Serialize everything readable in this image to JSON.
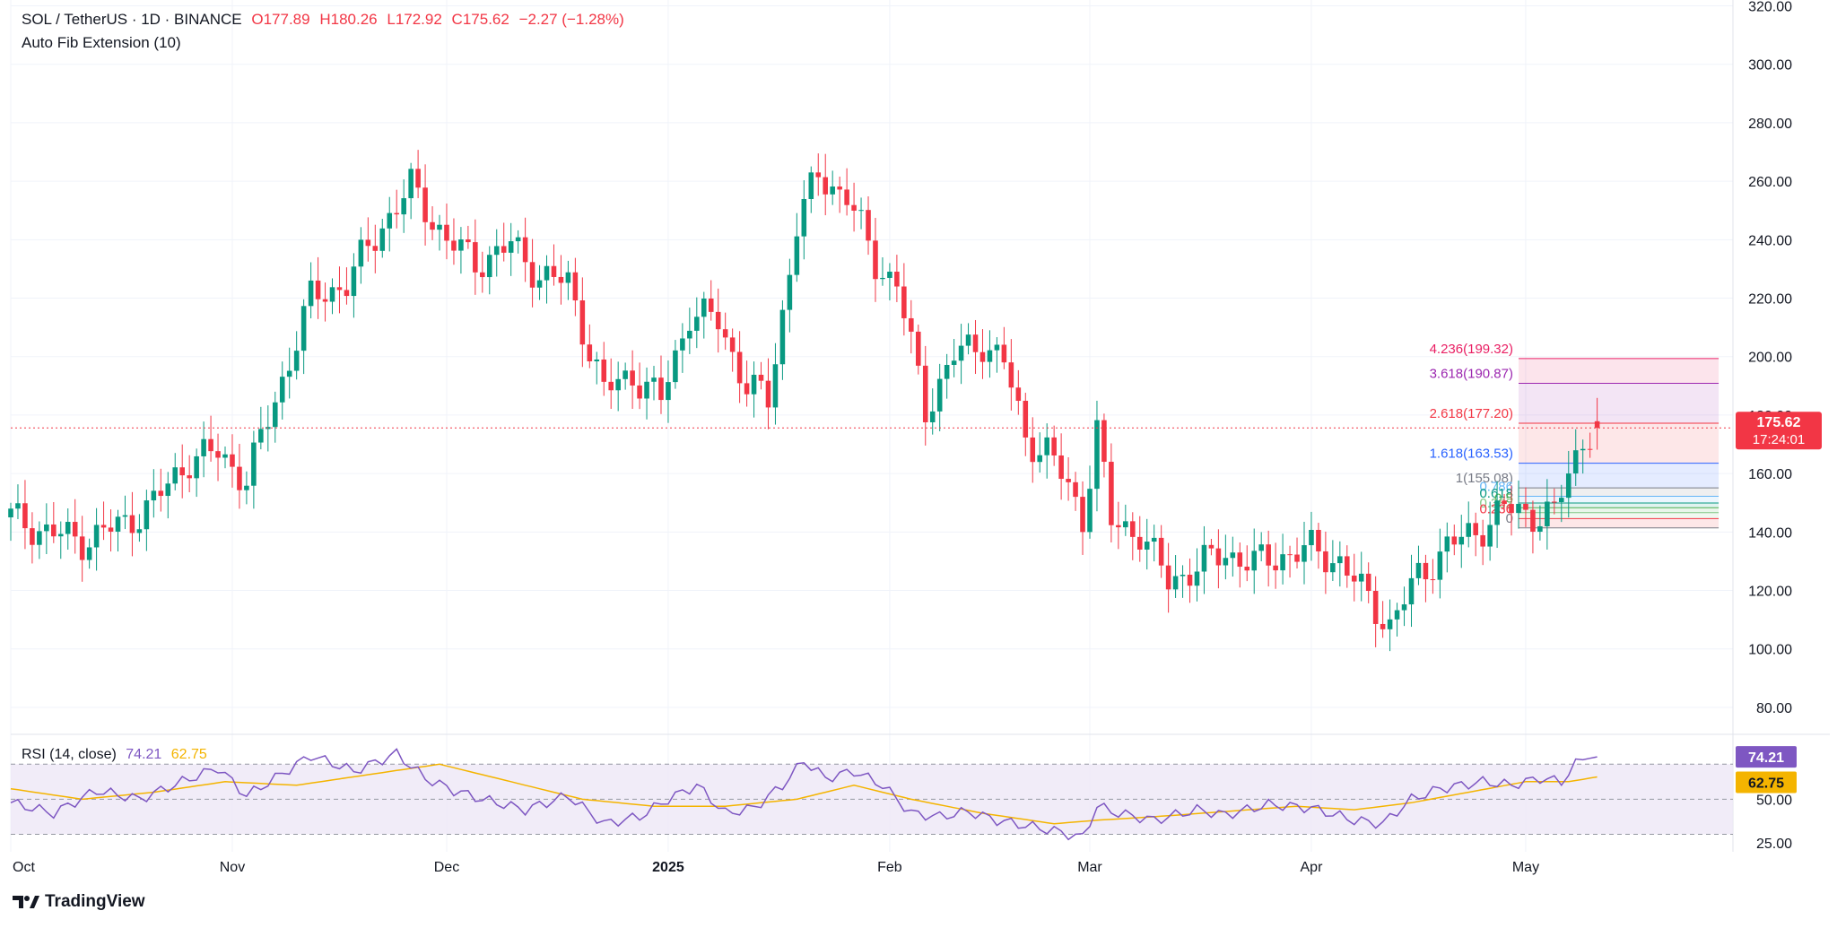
{
  "header": {
    "symbol": "SOL / TetherUS · 1D · BINANCE",
    "open": "O177.89",
    "high": "H180.26",
    "low": "L172.92",
    "close": "C175.62",
    "change": "−2.27 (−1.28%)",
    "indicator": "Auto Fib Extension (10)"
  },
  "rsi_header": {
    "label": "RSI (14, close)",
    "rsi_value": "74.21",
    "ma_value": "62.75"
  },
  "price_tag": {
    "price": "175.62",
    "countdown": "17:24:01"
  },
  "rsi_tags": {
    "rsi": "74.21",
    "ma": "62.75"
  },
  "branding": {
    "logo_text": "TradingView"
  },
  "colors": {
    "up": "#089981",
    "down": "#f23645",
    "rsi_line": "#7e57c2",
    "rsi_ma": "#f4b400",
    "rsi_band": "#ede7f6",
    "grid": "#f0f3fa"
  },
  "chart_data": {
    "type": "candlestick",
    "main_panel": {
      "y_ticks": [
        80,
        100,
        120,
        140,
        160,
        180,
        200,
        220,
        240,
        260,
        280,
        300,
        320
      ],
      "y_tick_labels": [
        "80.00",
        "100.00",
        "120.00",
        "140.00",
        "160.00",
        "180.00",
        "200.00",
        "220.00",
        "240.00",
        "260.00",
        "280.00",
        "300.00",
        "320.00"
      ],
      "ylim": [
        72,
        322
      ],
      "last_price": 175.62
    },
    "x_axis": {
      "ticks": [
        {
          "label": "Oct",
          "day": 0
        },
        {
          "label": "Nov",
          "day": 31
        },
        {
          "label": "Dec",
          "day": 61
        },
        {
          "label": "2025",
          "day": 92
        },
        {
          "label": "Feb",
          "day": 123
        },
        {
          "label": "Mar",
          "day": 151
        },
        {
          "label": "Apr",
          "day": 182
        },
        {
          "label": "May",
          "day": 212
        }
      ],
      "day_range": [
        0,
        241
      ]
    },
    "fib_levels": [
      {
        "label": "4.236(199.32)",
        "value": 199.32,
        "color": "#e91e63"
      },
      {
        "label": "3.618(190.87)",
        "value": 190.87,
        "color": "#9c27b0"
      },
      {
        "label": "2.618(177.20)",
        "value": 177.2,
        "color": "#f23645"
      },
      {
        "label": "1.618(163.53)",
        "value": 163.53,
        "color": "#2962ff"
      },
      {
        "label": "1(155.08)",
        "value": 155.08,
        "color": "#787b86"
      },
      {
        "label": "0.786",
        "value": 152.2,
        "color": "#64b5f6"
      },
      {
        "label": "0.618",
        "value": 149.9,
        "color": "#089981"
      },
      {
        "label": "0.5",
        "value": 148.3,
        "color": "#4caf50"
      },
      {
        "label": "0.382",
        "value": 146.6,
        "color": "#81c784"
      },
      {
        "label": "0.236",
        "value": 144.6,
        "color": "#f23645"
      },
      {
        "label": "0",
        "value": 141.4,
        "color": "#787b86"
      }
    ],
    "candles_keypoints": [
      [
        0,
        145
      ],
      [
        5,
        140
      ],
      [
        10,
        137
      ],
      [
        16,
        143
      ],
      [
        20,
        150
      ],
      [
        25,
        165
      ],
      [
        29,
        167
      ],
      [
        33,
        158
      ],
      [
        37,
        185
      ],
      [
        42,
        220
      ],
      [
        47,
        225
      ],
      [
        52,
        245
      ],
      [
        56,
        258
      ],
      [
        61,
        240
      ],
      [
        65,
        232
      ],
      [
        70,
        238
      ],
      [
        74,
        228
      ],
      [
        78,
        225
      ],
      [
        83,
        188
      ],
      [
        87,
        194
      ],
      [
        91,
        185
      ],
      [
        95,
        215
      ],
      [
        99,
        212
      ],
      [
        103,
        190
      ],
      [
        106,
        185
      ],
      [
        110,
        245
      ],
      [
        113,
        262
      ],
      [
        117,
        255
      ],
      [
        121,
        232
      ],
      [
        124,
        225
      ],
      [
        128,
        182
      ],
      [
        132,
        200
      ],
      [
        136,
        205
      ],
      [
        139,
        198
      ],
      [
        142,
        172
      ],
      [
        145,
        168
      ],
      [
        148,
        155
      ],
      [
        150,
        145
      ],
      [
        152,
        175
      ],
      [
        154,
        143
      ],
      [
        158,
        140
      ],
      [
        162,
        123
      ],
      [
        166,
        128
      ],
      [
        170,
        133
      ],
      [
        174,
        129
      ],
      [
        178,
        132
      ],
      [
        182,
        134
      ],
      [
        186,
        130
      ],
      [
        189,
        120
      ],
      [
        193,
        108
      ],
      [
        197,
        125
      ],
      [
        201,
        135
      ],
      [
        205,
        140
      ],
      [
        209,
        148
      ],
      [
        213,
        146
      ],
      [
        216,
        146
      ],
      [
        218,
        160
      ],
      [
        220,
        172
      ],
      [
        222,
        175.62
      ]
    ],
    "rsi_panel": {
      "y_ticks": [
        25,
        50
      ],
      "y_tick_labels": [
        "25.00",
        "50.00"
      ],
      "band": [
        30,
        70
      ],
      "ylim": [
        20,
        85
      ],
      "rsi_keypoints": [
        [
          0,
          48
        ],
        [
          6,
          42
        ],
        [
          12,
          55
        ],
        [
          18,
          50
        ],
        [
          24,
          60
        ],
        [
          29,
          68
        ],
        [
          33,
          52
        ],
        [
          37,
          62
        ],
        [
          42,
          75
        ],
        [
          48,
          66
        ],
        [
          54,
          76
        ],
        [
          58,
          62
        ],
        [
          62,
          55
        ],
        [
          66,
          50
        ],
        [
          72,
          44
        ],
        [
          78,
          52
        ],
        [
          83,
          36
        ],
        [
          88,
          40
        ],
        [
          92,
          50
        ],
        [
          96,
          58
        ],
        [
          100,
          42
        ],
        [
          104,
          45
        ],
        [
          108,
          58
        ],
        [
          111,
          72
        ],
        [
          114,
          62
        ],
        [
          118,
          66
        ],
        [
          122,
          58
        ],
        [
          126,
          42
        ],
        [
          130,
          40
        ],
        [
          134,
          43
        ],
        [
          138,
          38
        ],
        [
          142,
          35
        ],
        [
          146,
          32
        ],
        [
          150,
          28
        ],
        [
          152,
          46
        ],
        [
          155,
          42
        ],
        [
          160,
          38
        ],
        [
          166,
          44
        ],
        [
          170,
          41
        ],
        [
          176,
          47
        ],
        [
          182,
          45
        ],
        [
          188,
          38
        ],
        [
          192,
          36
        ],
        [
          196,
          50
        ],
        [
          200,
          56
        ],
        [
          206,
          60
        ],
        [
          210,
          58
        ],
        [
          214,
          62
        ],
        [
          217,
          60
        ],
        [
          219,
          70
        ],
        [
          221,
          76
        ],
        [
          222,
          74.21
        ]
      ],
      "ma_keypoints": [
        [
          0,
          56
        ],
        [
          10,
          50
        ],
        [
          20,
          54
        ],
        [
          30,
          60
        ],
        [
          40,
          58
        ],
        [
          50,
          64
        ],
        [
          60,
          70
        ],
        [
          70,
          60
        ],
        [
          80,
          50
        ],
        [
          90,
          46
        ],
        [
          100,
          46
        ],
        [
          110,
          50
        ],
        [
          118,
          58
        ],
        [
          126,
          50
        ],
        [
          136,
          42
        ],
        [
          146,
          36
        ],
        [
          152,
          38
        ],
        [
          160,
          40
        ],
        [
          170,
          43
        ],
        [
          180,
          46
        ],
        [
          188,
          44
        ],
        [
          196,
          48
        ],
        [
          204,
          54
        ],
        [
          212,
          60
        ],
        [
          218,
          60
        ],
        [
          222,
          62.75
        ]
      ]
    }
  }
}
